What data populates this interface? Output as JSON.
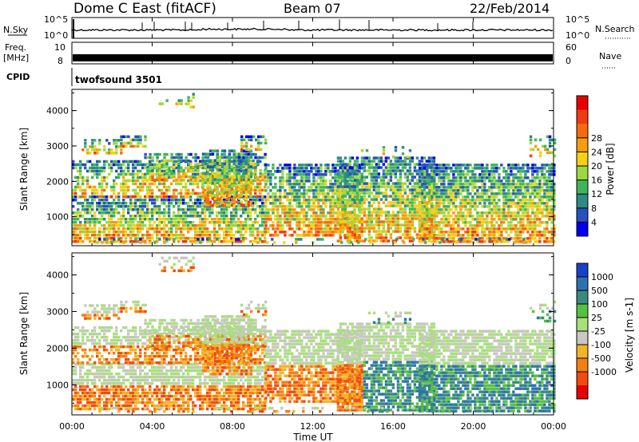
{
  "header": {
    "station": "Dome C East (fitACF)",
    "beam": "Beam 07",
    "date": "22/Feb/2014"
  },
  "strips": {
    "nsky_label": "N.Sky",
    "nsky_ticks": [
      "10^5",
      "10^0"
    ],
    "nsearch_label": "N.Search",
    "freq_label": "Freq.",
    "freq_unit": "[MHz]",
    "freq_ticks": [
      "10",
      "8"
    ],
    "nave_ticks": [
      "60",
      "0"
    ],
    "nave_label": "Nave",
    "cpid_label": "CPID",
    "cpid_value": "twofsound 3501"
  },
  "chart_data": [
    {
      "type": "heatmap",
      "name": "Power",
      "xlabel": "",
      "ylabel": "Slant Range [km]",
      "x_ticks": [
        "00:00",
        "04:00",
        "08:00",
        "12:00",
        "16:00",
        "20:00",
        "00:00"
      ],
      "y_ticks": [
        1000,
        2000,
        3000,
        4000
      ],
      "ylim": [
        180,
        4600
      ],
      "colorbar": {
        "label": "Power [dB]",
        "ticks": [
          4,
          8,
          12,
          16,
          20,
          24,
          28
        ],
        "colors": [
          "#0000f0",
          "#2850c0",
          "#2e8a82",
          "#3fb55a",
          "#9ed840",
          "#f4d018",
          "#f59c10",
          "#f46a10",
          "#f03a10",
          "#e80000"
        ]
      }
    },
    {
      "type": "heatmap",
      "name": "Velocity",
      "xlabel": "Time UT",
      "ylabel": "Slant Range [km]",
      "x_ticks": [
        "00:00",
        "04:00",
        "08:00",
        "12:00",
        "16:00",
        "20:00",
        "00:00"
      ],
      "y_ticks": [
        1000,
        2000,
        3000,
        4000
      ],
      "ylim": [
        180,
        4600
      ],
      "colorbar": {
        "label": "Velocity [m s-1]",
        "ticks": [
          1000,
          500,
          100,
          25,
          -25,
          -100,
          -500,
          -1000
        ],
        "colors": [
          "#1a40c8",
          "#2d72b0",
          "#3a8a80",
          "#58c040",
          "#a8e07c",
          "#c8c8c0",
          "#f0b428",
          "#f48010",
          "#f04c10",
          "#e80000"
        ]
      }
    }
  ]
}
